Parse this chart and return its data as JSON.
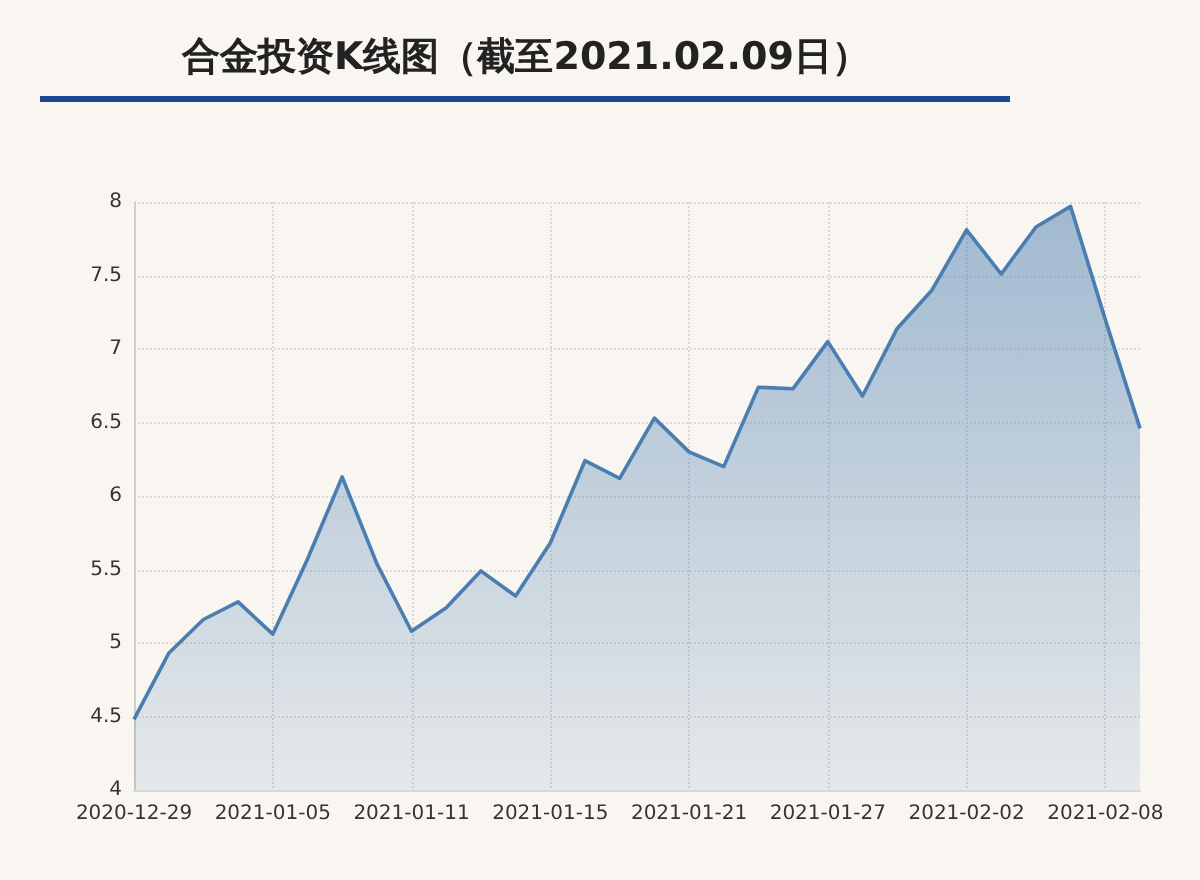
{
  "chart_data": {
    "type": "area",
    "title": "合金投资K线图（截至2021.02.09日）",
    "categories": [
      "2020-12-29",
      null,
      null,
      null,
      "2021-01-05",
      null,
      null,
      null,
      "2021-01-11",
      null,
      null,
      null,
      "2021-01-15",
      null,
      null,
      null,
      "2021-01-21",
      null,
      null,
      null,
      "2021-01-27",
      null,
      null,
      null,
      "2021-02-02",
      null,
      null,
      null,
      "2021-02-08",
      null
    ],
    "values": [
      4.48,
      4.93,
      5.16,
      5.28,
      5.06,
      5.57,
      6.13,
      5.54,
      5.08,
      5.24,
      5.49,
      5.32,
      5.68,
      6.24,
      6.12,
      6.53,
      6.3,
      6.2,
      6.74,
      6.73,
      7.05,
      6.68,
      7.14,
      7.4,
      7.81,
      7.51,
      7.83,
      7.97,
      7.2,
      6.46
    ],
    "color": "#4a7db0",
    "ylim": [
      4,
      8
    ],
    "yticks": [
      4,
      4.5,
      5,
      5.5,
      6,
      6.5,
      7,
      7.5,
      8
    ],
    "grid": true
  }
}
